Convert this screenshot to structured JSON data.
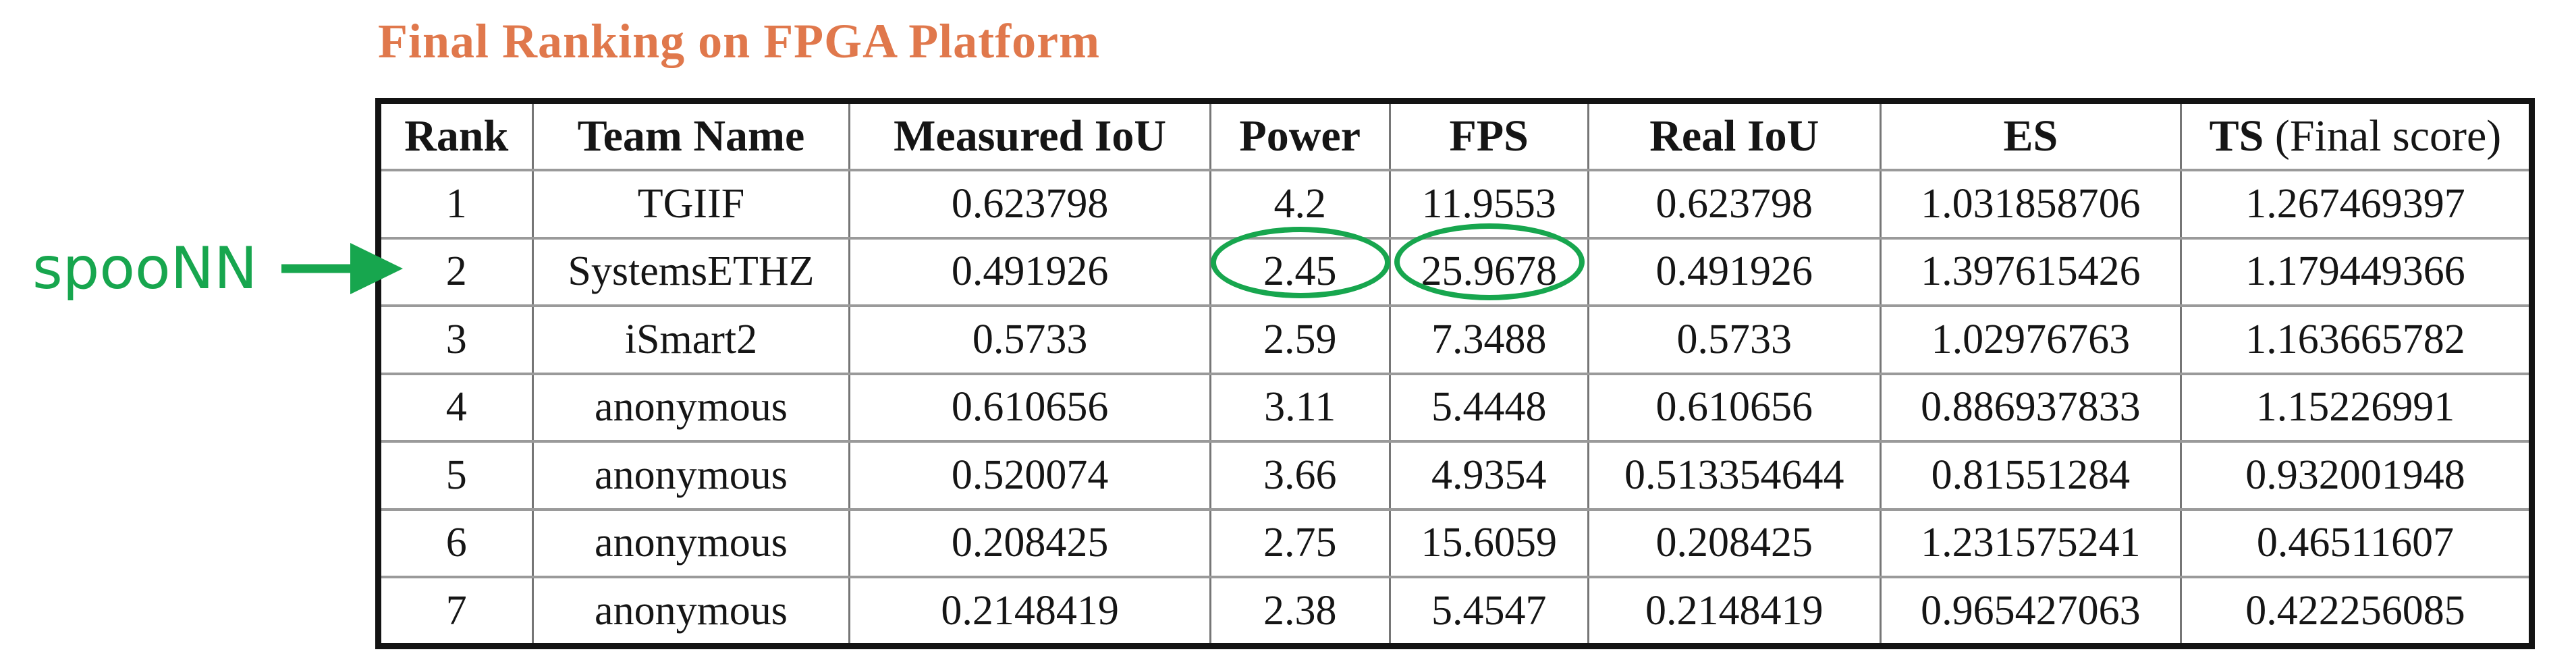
{
  "title": "Final Ranking on FPGA Platform",
  "colors": {
    "title_orange": "#E0784C",
    "annotation_green": "#17A64E",
    "grid_gray": "#9a9a9a",
    "outer_border": "#131313"
  },
  "annotation": {
    "label": "spooNN",
    "arrow_icon": "right-arrow",
    "points_to_rank": "2"
  },
  "highlights": {
    "circled_values": [
      "2.45",
      "25.9678"
    ],
    "circled_row_team": "SystemsETHZ"
  },
  "table": {
    "column_keys": [
      "rank",
      "team-name",
      "measured-iou",
      "power",
      "fps",
      "real-iou",
      "es",
      "ts"
    ],
    "headers": [
      {
        "label": "Rank"
      },
      {
        "label": "Team Name"
      },
      {
        "label": "Measured IoU"
      },
      {
        "label": "Power"
      },
      {
        "label": "FPS"
      },
      {
        "label": "Real IoU"
      },
      {
        "label": "ES"
      },
      {
        "label": "TS",
        "note": " (Final score)"
      }
    ],
    "rows": [
      [
        "1",
        "TGIIF",
        "0.623798",
        "4.2",
        "11.9553",
        "0.623798",
        "1.031858706",
        "1.267469397"
      ],
      [
        "2",
        "SystemsETHZ",
        "0.491926",
        "2.45",
        "25.9678",
        "0.491926",
        "1.397615426",
        "1.179449366"
      ],
      [
        "3",
        "iSmart2",
        "0.5733",
        "2.59",
        "7.3488",
        "0.5733",
        "1.02976763",
        "1.163665782"
      ],
      [
        "4",
        "anonymous",
        "0.610656",
        "3.11",
        "5.4448",
        "0.610656",
        "0.886937833",
        "1.15226991"
      ],
      [
        "5",
        "anonymous",
        "0.520074",
        "3.66",
        "4.9354",
        "0.513354644",
        "0.81551284",
        "0.932001948"
      ],
      [
        "6",
        "anonymous",
        "0.208425",
        "2.75",
        "15.6059",
        "0.208425",
        "1.231575241",
        "0.46511607"
      ],
      [
        "7",
        "anonymous",
        "0.2148419",
        "2.38",
        "5.4547",
        "0.2148419",
        "0.965427063",
        "0.422256085"
      ]
    ]
  }
}
